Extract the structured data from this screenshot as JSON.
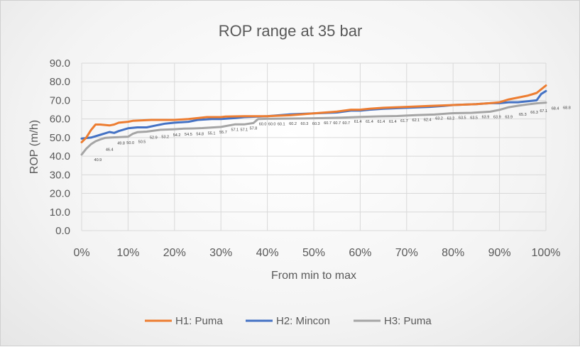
{
  "chart_data": {
    "type": "line",
    "title": "ROP range at 35 bar",
    "xlabel": "From min to max",
    "ylabel": "ROP (m/h)",
    "xlim": [
      0,
      100
    ],
    "ylim": [
      0,
      90
    ],
    "x_ticks": [
      "0%",
      "10%",
      "20%",
      "30%",
      "40%",
      "50%",
      "60%",
      "70%",
      "80%",
      "90%",
      "100%"
    ],
    "y_ticks": [
      "0.0",
      "10.0",
      "20.0",
      "30.0",
      "40.0",
      "50.0",
      "60.0",
      "70.0",
      "80.0",
      "90.0"
    ],
    "grid": true,
    "legend_position": "bottom",
    "series": [
      {
        "name": "H1: Puma",
        "color": "#ED7D31",
        "points": [
          [
            0,
            47.5
          ],
          [
            1,
            50
          ],
          [
            2,
            54
          ],
          [
            3,
            57
          ],
          [
            4,
            57
          ],
          [
            6,
            56.5
          ],
          [
            7,
            57
          ],
          [
            8,
            58
          ],
          [
            10,
            58.5
          ],
          [
            11,
            59
          ],
          [
            15,
            59.5
          ],
          [
            20,
            59.5
          ],
          [
            23,
            60
          ],
          [
            25,
            60.5
          ],
          [
            27,
            61
          ],
          [
            30,
            61
          ],
          [
            31,
            61.3
          ],
          [
            35,
            61.5
          ],
          [
            40,
            61.5
          ],
          [
            45,
            62
          ],
          [
            50,
            63
          ],
          [
            55,
            64
          ],
          [
            58,
            65
          ],
          [
            60,
            65
          ],
          [
            62,
            65.5
          ],
          [
            65,
            66
          ],
          [
            70,
            66.5
          ],
          [
            75,
            67
          ],
          [
            80,
            67.5
          ],
          [
            85,
            68
          ],
          [
            88,
            68.5
          ],
          [
            90,
            69
          ],
          [
            92,
            70.5
          ],
          [
            94,
            71.5
          ],
          [
            96,
            72.5
          ],
          [
            98,
            74
          ],
          [
            100,
            78
          ]
        ]
      },
      {
        "name": "H2: Mincon",
        "color": "#4472C4",
        "points": [
          [
            0,
            49.5
          ],
          [
            2,
            50
          ],
          [
            4,
            51.5
          ],
          [
            6,
            53
          ],
          [
            7,
            52.5
          ],
          [
            8,
            53.5
          ],
          [
            10,
            55
          ],
          [
            12,
            55.5
          ],
          [
            14,
            55.5
          ],
          [
            16,
            56.5
          ],
          [
            17,
            57
          ],
          [
            18,
            57.5
          ],
          [
            20,
            58
          ],
          [
            23,
            58.5
          ],
          [
            25,
            59.5
          ],
          [
            28,
            60
          ],
          [
            30,
            60
          ],
          [
            33,
            60.5
          ],
          [
            35,
            61
          ],
          [
            40,
            61.5
          ],
          [
            45,
            62.5
          ],
          [
            50,
            63
          ],
          [
            55,
            63.5
          ],
          [
            58,
            64.5
          ],
          [
            60,
            64.5
          ],
          [
            62,
            65
          ],
          [
            65,
            65.5
          ],
          [
            70,
            66
          ],
          [
            75,
            66.5
          ],
          [
            78,
            67
          ],
          [
            80,
            67.5
          ],
          [
            85,
            68
          ],
          [
            88,
            68.5
          ],
          [
            90,
            68.5
          ],
          [
            92,
            69
          ],
          [
            94,
            69
          ],
          [
            96,
            69.5
          ],
          [
            98,
            70
          ],
          [
            99,
            73.5
          ],
          [
            100,
            75
          ]
        ]
      },
      {
        "name": "H3: Puma",
        "color": "#A5A5A5",
        "points": [
          [
            0,
            40.9
          ],
          [
            1,
            44
          ],
          [
            2,
            46.4
          ],
          [
            3,
            48
          ],
          [
            4,
            49
          ],
          [
            5,
            49.8
          ],
          [
            6,
            50
          ],
          [
            10,
            50.5
          ],
          [
            11,
            52
          ],
          [
            12,
            52.9
          ],
          [
            14,
            53.2
          ],
          [
            17,
            54.2
          ],
          [
            20,
            54.5
          ],
          [
            22,
            54.8
          ],
          [
            24,
            54.9
          ],
          [
            26,
            55.1
          ],
          [
            30,
            55.7
          ],
          [
            33,
            57.1
          ],
          [
            35,
            57.1
          ],
          [
            37,
            57.8
          ],
          [
            38,
            60
          ],
          [
            40,
            60.1
          ],
          [
            44,
            60.2
          ],
          [
            48,
            60.3
          ],
          [
            52,
            60.5
          ],
          [
            56,
            60.7
          ],
          [
            60,
            61.1
          ],
          [
            64,
            61.4
          ],
          [
            68,
            61.6
          ],
          [
            70,
            61.8
          ],
          [
            72,
            62.1
          ],
          [
            76,
            62.4
          ],
          [
            80,
            63.1
          ],
          [
            84,
            63.3
          ],
          [
            88,
            63.9
          ],
          [
            90,
            64.9
          ],
          [
            92,
            66.3
          ],
          [
            94,
            67.1
          ],
          [
            96,
            67.8
          ],
          [
            98,
            68.4
          ],
          [
            100,
            68.8
          ]
        ]
      }
    ],
    "data_labels": [
      {
        "x": 3.5,
        "y": 40.9,
        "text": "40.9"
      },
      {
        "x": 6,
        "y": 46.4,
        "text": "46.4"
      },
      {
        "x": 8.5,
        "y": 49.8,
        "text": "49.8"
      },
      {
        "x": 10.5,
        "y": 50.0,
        "text": "50.0"
      },
      {
        "x": 13,
        "y": 50.5,
        "text": "50.5"
      },
      {
        "x": 15.5,
        "y": 52.9,
        "text": "52.9"
      },
      {
        "x": 18,
        "y": 53.2,
        "text": "53.2"
      },
      {
        "x": 20.5,
        "y": 54.2,
        "text": "54.2"
      },
      {
        "x": 23,
        "y": 54.5,
        "text": "54.5"
      },
      {
        "x": 25.5,
        "y": 54.8,
        "text": "54.8"
      },
      {
        "x": 28,
        "y": 55.1,
        "text": "55.1"
      },
      {
        "x": 30.5,
        "y": 55.7,
        "text": "55.7"
      },
      {
        "x": 33,
        "y": 57.1,
        "text": "57.1"
      },
      {
        "x": 35,
        "y": 57.1,
        "text": "57.1"
      },
      {
        "x": 37,
        "y": 57.8,
        "text": "57.8"
      },
      {
        "x": 39,
        "y": 60.0,
        "text": "60.0"
      },
      {
        "x": 41,
        "y": 60.0,
        "text": "60.0"
      },
      {
        "x": 43,
        "y": 60.1,
        "text": "60.1"
      },
      {
        "x": 45.5,
        "y": 60.2,
        "text": "60.2"
      },
      {
        "x": 48,
        "y": 60.3,
        "text": "60.3"
      },
      {
        "x": 50.5,
        "y": 60.3,
        "text": "60.3"
      },
      {
        "x": 53,
        "y": 60.7,
        "text": "60.7"
      },
      {
        "x": 55,
        "y": 60.7,
        "text": "60.7"
      },
      {
        "x": 57,
        "y": 60.7,
        "text": "60.7"
      },
      {
        "x": 59.5,
        "y": 61.4,
        "text": "61.4"
      },
      {
        "x": 62,
        "y": 61.4,
        "text": "61.4"
      },
      {
        "x": 64.5,
        "y": 61.4,
        "text": "61.4"
      },
      {
        "x": 67,
        "y": 61.4,
        "text": "61.4"
      },
      {
        "x": 69.5,
        "y": 61.7,
        "text": "61.7"
      },
      {
        "x": 72,
        "y": 62.1,
        "text": "62.1"
      },
      {
        "x": 74.5,
        "y": 62.4,
        "text": "62.4"
      },
      {
        "x": 77,
        "y": 63.2,
        "text": "63.2"
      },
      {
        "x": 79.5,
        "y": 63.2,
        "text": "63.2"
      },
      {
        "x": 82,
        "y": 63.5,
        "text": "63.5"
      },
      {
        "x": 84.5,
        "y": 63.5,
        "text": "63.5"
      },
      {
        "x": 87,
        "y": 63.9,
        "text": "63.9"
      },
      {
        "x": 89.5,
        "y": 63.9,
        "text": "63.9"
      },
      {
        "x": 92,
        "y": 63.9,
        "text": "63.9"
      },
      {
        "x": 95,
        "y": 65.3,
        "text": "65.3"
      },
      {
        "x": 97.5,
        "y": 66.3,
        "text": "66.3"
      },
      {
        "x": 99.5,
        "y": 67.1,
        "text": "67.1"
      },
      {
        "x": 102,
        "y": 68.4,
        "text": "68.4"
      },
      {
        "x": 104.5,
        "y": 68.8,
        "text": "68.8"
      }
    ]
  }
}
